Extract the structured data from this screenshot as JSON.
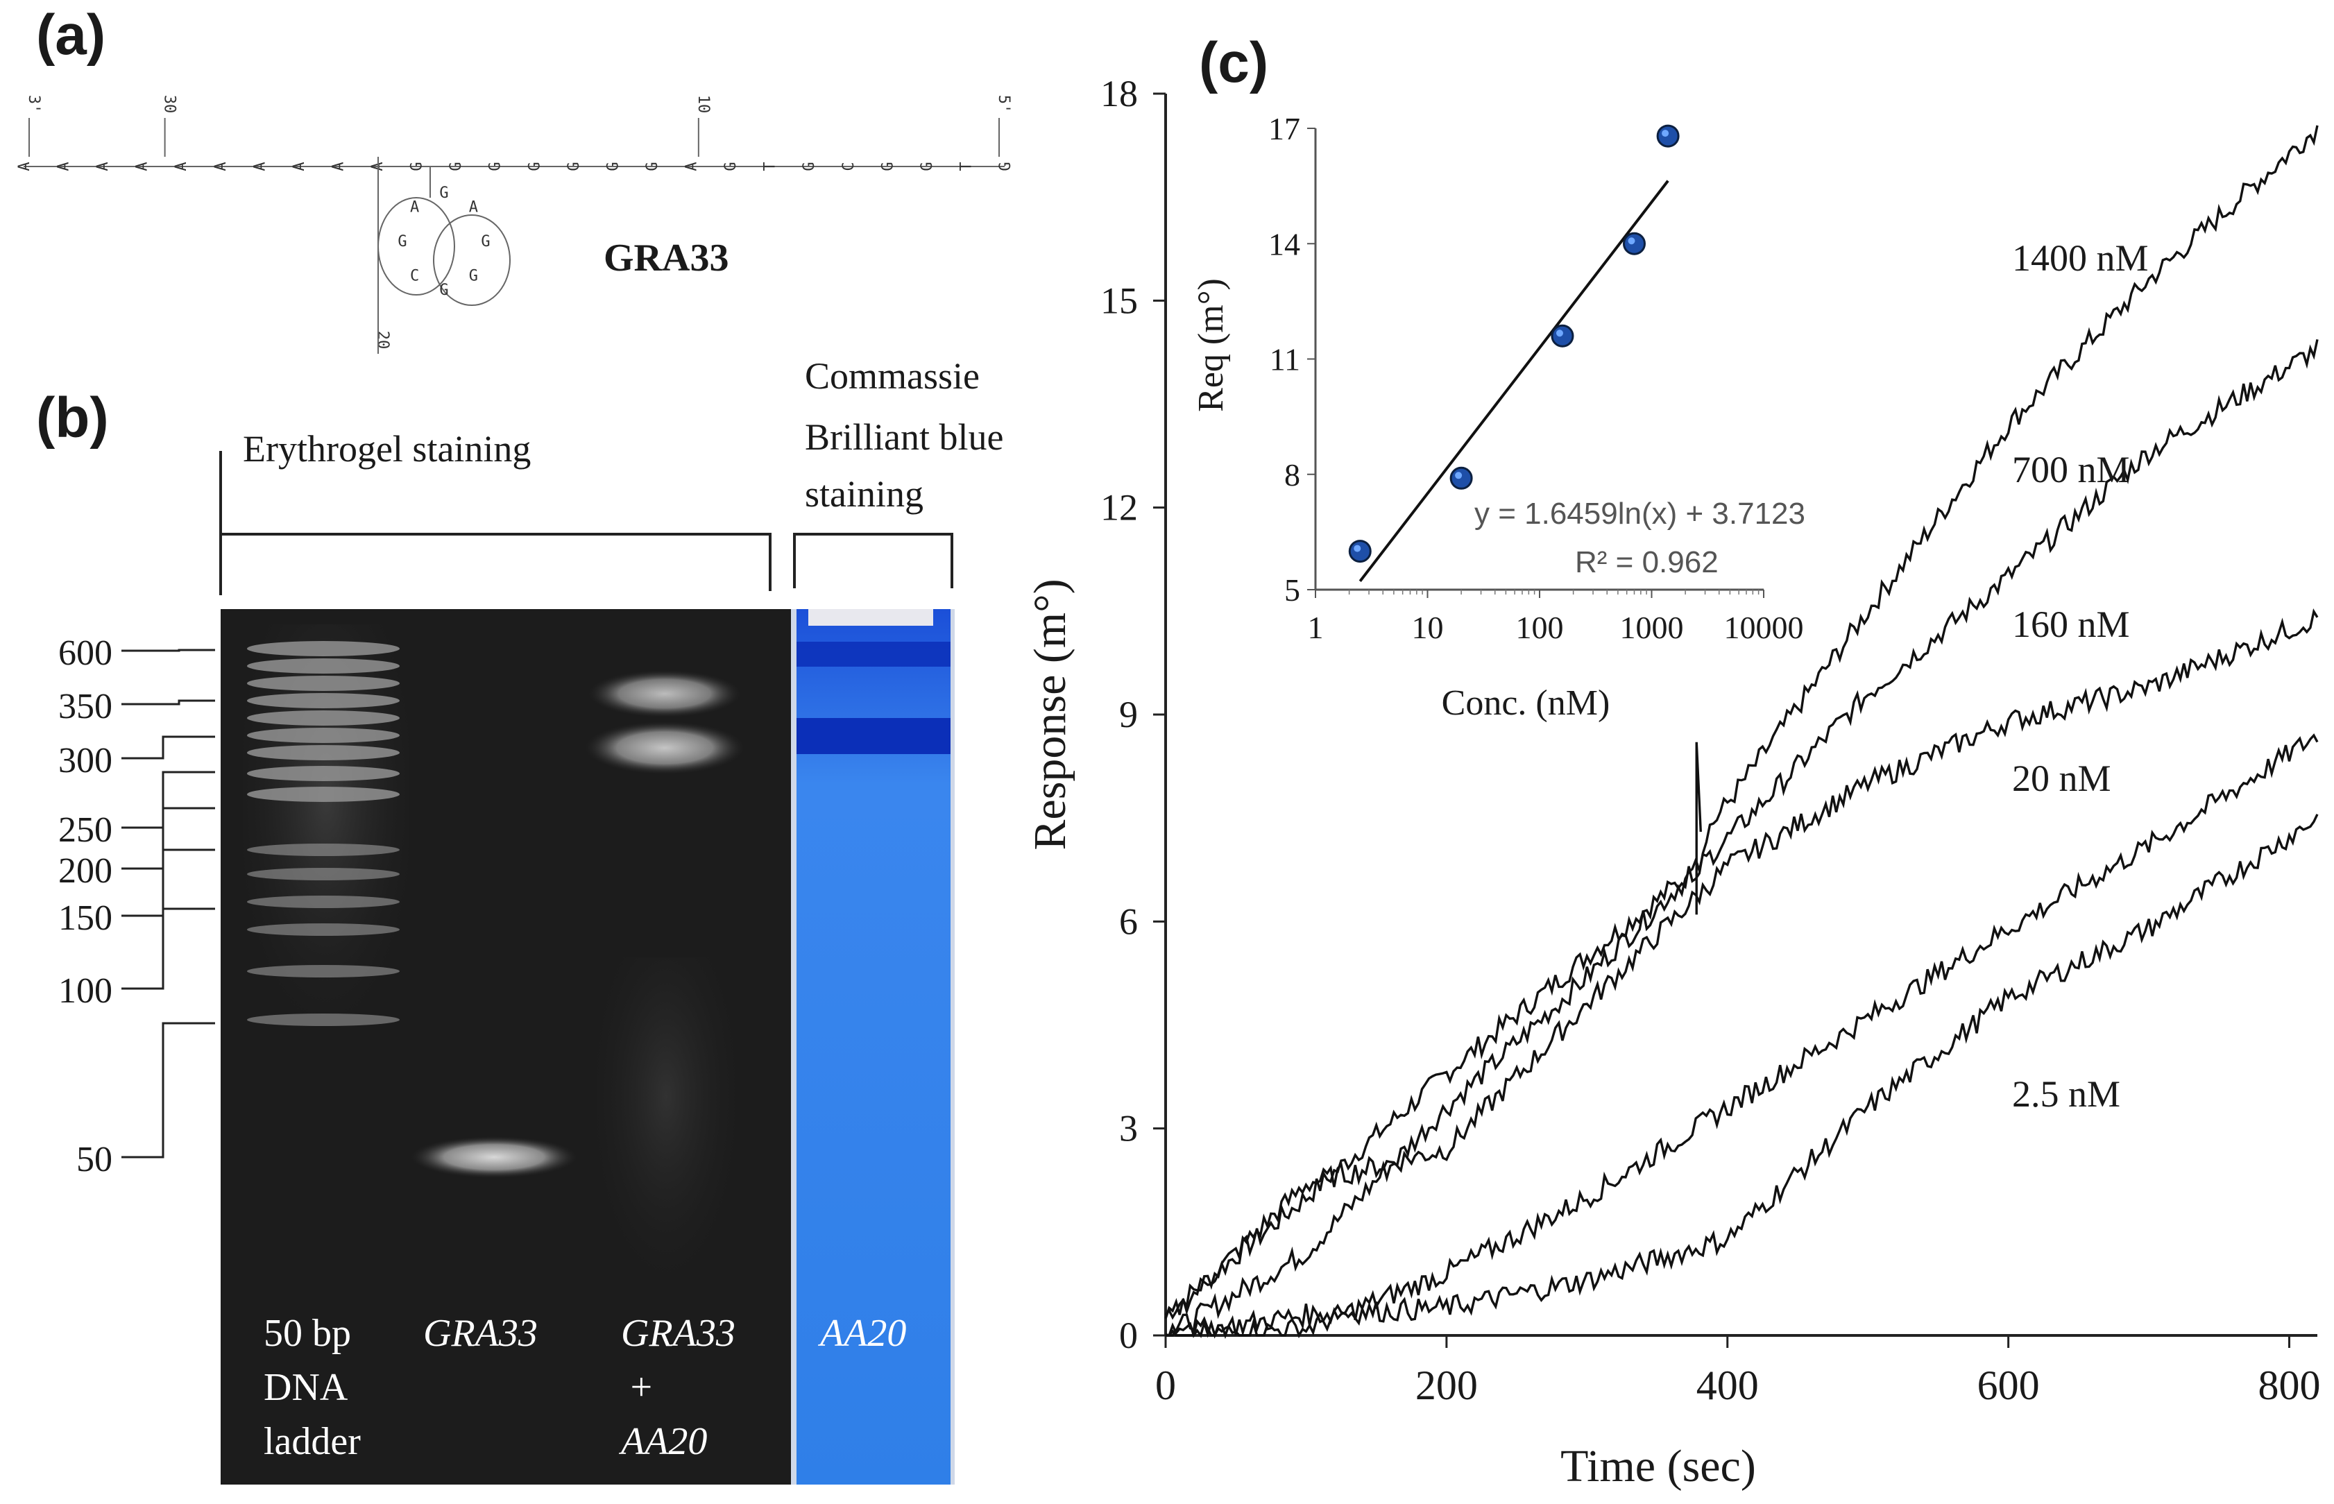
{
  "panels": {
    "a": {
      "label": "(a)",
      "title": "GRA33",
      "sequence_nodes": [
        "A",
        "A",
        "A",
        "A",
        "A",
        "A",
        "A",
        "A",
        "A",
        "A",
        "G",
        "G",
        "G",
        "G",
        "G",
        "G",
        "G",
        "A",
        "G",
        "T",
        "G",
        "C",
        "G",
        "G",
        "T",
        "G"
      ],
      "loop_nodes": [
        "G",
        "G",
        "G",
        "C",
        "G",
        "A",
        "G",
        "A"
      ],
      "position_marks": [
        "3'",
        "30",
        "10",
        "5'",
        "20"
      ]
    },
    "b": {
      "label": "(b)",
      "header_left": "Erythrogel staining",
      "header_right_lines": [
        "Commassie",
        "Brilliant blue",
        "staining"
      ],
      "ladder_sizes": [
        "600",
        "350",
        "300",
        "250",
        "200",
        "150",
        "100",
        "50"
      ],
      "lanes": [
        {
          "lines": [
            "50 bp",
            "DNA",
            "ladder"
          ],
          "italic": false
        },
        {
          "lines": [
            "GRA33"
          ],
          "italic": true
        },
        {
          "lines": [
            "GRA33",
            "+",
            "AA20"
          ],
          "italic": true
        },
        {
          "lines": [
            "AA20"
          ],
          "italic": true
        }
      ]
    },
    "c": {
      "label": "(c)"
    }
  },
  "colors": {
    "gel_bg": "#1c1c1c",
    "coomassie_blue": "#2f7fe8",
    "coomassie_band": "#0b2fb8",
    "marker_fill": "#1e6fd6"
  },
  "chart_data": [
    {
      "type": "line",
      "title": "",
      "xlabel": "Time (sec)",
      "ylabel": "Response (m°)",
      "xlim": [
        0,
        820
      ],
      "ylim": [
        0,
        18
      ],
      "xticks": [
        0,
        200,
        400,
        600,
        800
      ],
      "yticks": [
        0,
        3,
        6,
        9,
        12,
        15,
        18
      ],
      "series": [
        {
          "name": "1400 nM",
          "x": [
            0,
            100,
            200,
            300,
            380,
            385,
            500,
            600,
            700,
            820
          ],
          "y": [
            0.3,
            2.0,
            3.8,
            5.5,
            6.8,
            7.3,
            10.5,
            13.2,
            15.3,
            17.5
          ]
        },
        {
          "name": "700 nM",
          "x": [
            0,
            100,
            200,
            300,
            400,
            500,
            600,
            700,
            820
          ],
          "y": [
            0.0,
            1.2,
            3.3,
            5.2,
            7.2,
            9.3,
            11.0,
            12.8,
            14.3
          ]
        },
        {
          "name": "160 nM",
          "x": [
            0,
            100,
            200,
            300,
            400,
            500,
            600,
            700,
            820
          ],
          "y": [
            0.2,
            2.2,
            2.7,
            4.8,
            6.8,
            8.0,
            8.9,
            9.4,
            10.4
          ]
        },
        {
          "name": "20 nM",
          "x": [
            0,
            100,
            200,
            300,
            400,
            500,
            600,
            700,
            820
          ],
          "y": [
            0.0,
            0.1,
            0.9,
            2.0,
            3.3,
            4.6,
            5.9,
            7.1,
            8.7
          ]
        },
        {
          "name": "2.5 nM",
          "x": [
            0,
            100,
            200,
            300,
            400,
            500,
            600,
            700,
            820
          ],
          "y": [
            0.0,
            0.3,
            0.4,
            0.8,
            1.4,
            3.3,
            4.9,
            5.9,
            7.5
          ]
        }
      ],
      "spike": {
        "x": 378,
        "y_from": 6.1,
        "y_to": 8.6
      }
    },
    {
      "type": "scatter",
      "title": "",
      "xlabel": "Conc. (nM)",
      "ylabel": "Req (m°)",
      "xscale": "log",
      "xlim": [
        1,
        10000
      ],
      "ylim": [
        5,
        17
      ],
      "xticks": [
        1,
        10,
        100,
        1000,
        10000
      ],
      "yticks": [
        5,
        8,
        11,
        14,
        17
      ],
      "points": {
        "x": [
          2.5,
          20,
          160,
          700,
          1400
        ],
        "y": [
          6.0,
          7.9,
          11.6,
          14.0,
          16.8
        ]
      },
      "fit": {
        "equation": "y = 1.6459ln(x) + 3.7123",
        "r2": "R² = 0.962",
        "a": 1.6459,
        "b": 3.7123,
        "x_range": [
          2.5,
          1400
        ]
      }
    }
  ]
}
